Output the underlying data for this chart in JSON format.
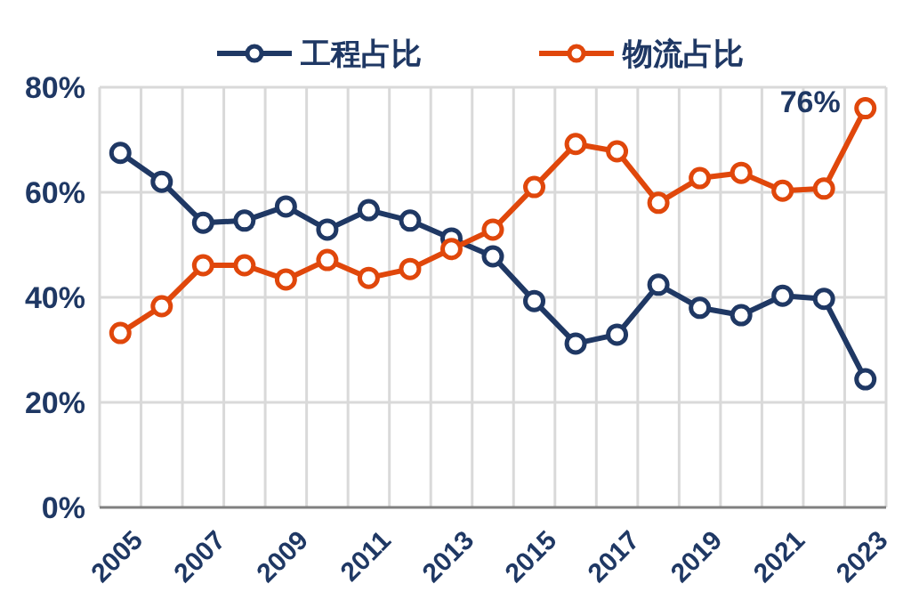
{
  "chart_data": {
    "type": "line",
    "categories": [
      "2005",
      null,
      "2007",
      null,
      "2009",
      null,
      "2011",
      null,
      "2013",
      null,
      "2015",
      null,
      "2017",
      null,
      "2019",
      null,
      "2021",
      null,
      "2023"
    ],
    "series": [
      {
        "name": "工程占比",
        "color": "#1f3864",
        "values": [
          67.5,
          62,
          54.2,
          54.6,
          57.3,
          52.9,
          56.6,
          54.6,
          51.2,
          47.8,
          39.3,
          31.2,
          32.9,
          42.4,
          38,
          36.6,
          40.3,
          39.7,
          24.4
        ]
      },
      {
        "name": "物流占比",
        "color": "#e0470b",
        "values": [
          33.2,
          38.3,
          46.1,
          46.1,
          43.4,
          47.1,
          43.7,
          45.4,
          49.2,
          52.9,
          61,
          69.2,
          67.8,
          58,
          62.7,
          63.7,
          60.3,
          60.7,
          76
        ]
      }
    ],
    "ylim": [
      0,
      80
    ],
    "yticks": [
      {
        "value": 0,
        "label": "0%"
      },
      {
        "value": 20,
        "label": "20%"
      },
      {
        "value": 40,
        "label": "40%"
      },
      {
        "value": 60,
        "label": "60%"
      },
      {
        "value": 80,
        "label": "80%"
      }
    ],
    "annotations": [
      {
        "text": "76%",
        "x": "2023",
        "y": 76
      }
    ],
    "grid": true,
    "legend": "top",
    "marker": "circle",
    "line_style": "solid"
  }
}
